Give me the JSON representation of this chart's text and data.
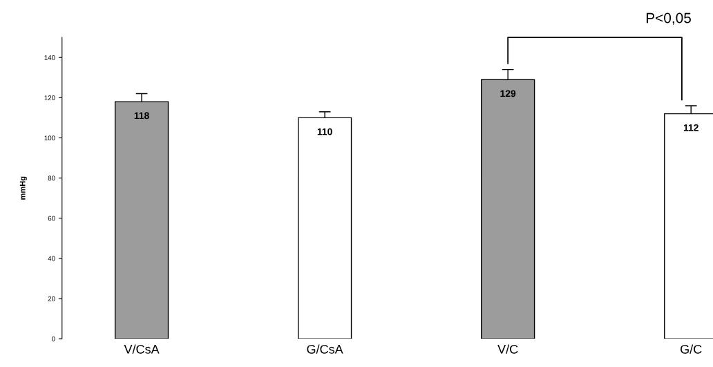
{
  "chart_data": {
    "type": "bar",
    "ylabel": "mmHg",
    "categories": [
      "V/CsA",
      "G/CsA",
      "V/C",
      "G/C"
    ],
    "values": [
      118,
      110,
      129,
      112
    ],
    "colors": [
      "#9c9c9c",
      "#ffffff",
      "#9c9c9c",
      "#ffffff"
    ],
    "errors": [
      4,
      3,
      5,
      4
    ],
    "ylim": [
      0,
      150
    ],
    "yticks": [
      0,
      20,
      40,
      60,
      80,
      100,
      120,
      140
    ],
    "data_labels": true,
    "grid": false,
    "annotations": [
      "P<0,05"
    ]
  }
}
